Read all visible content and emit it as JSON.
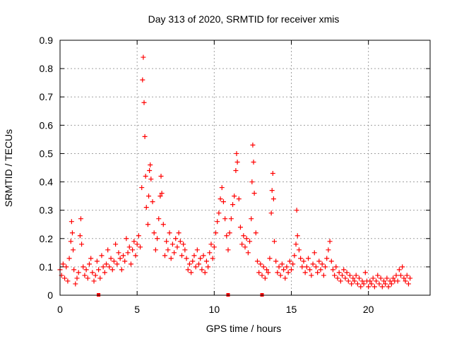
{
  "chart_data": {
    "type": "scatter",
    "title": "Day 313 of 2020, SRMTID for receiver xmis",
    "xlabel": "GPS time / hours",
    "ylabel": "SRMTID / TECUs",
    "xlim": [
      0,
      24
    ],
    "ylim": [
      0,
      0.9
    ],
    "x_ticks": [
      0,
      5,
      10,
      15,
      20
    ],
    "y_ticks": [
      0,
      0.1,
      0.2,
      0.3,
      0.4,
      0.5,
      0.6,
      0.7,
      0.8,
      0.9
    ],
    "x_tick_labels": [
      "0",
      "5",
      "10",
      "15",
      "20"
    ],
    "y_tick_labels": [
      "0",
      "0.1",
      "0.2",
      "0.3",
      "0.4",
      "0.5",
      "0.6",
      "0.7",
      "0.8",
      "0.9"
    ],
    "grid": true,
    "marker": "+",
    "series_color": "#ff0000",
    "baseline_markers_x": [
      2.5,
      10.9,
      13.1
    ],
    "series": [
      {
        "name": "SRMTID",
        "points": [
          [
            0.0,
            0.09
          ],
          [
            0.1,
            0.07
          ],
          [
            0.2,
            0.11
          ],
          [
            0.3,
            0.06
          ],
          [
            0.4,
            0.1
          ],
          [
            0.5,
            0.05
          ],
          [
            0.6,
            0.13
          ],
          [
            0.7,
            0.19
          ],
          [
            0.75,
            0.26
          ],
          [
            0.8,
            0.22
          ],
          [
            0.85,
            0.16
          ],
          [
            0.9,
            0.09
          ],
          [
            1.0,
            0.04
          ],
          [
            1.1,
            0.06
          ],
          [
            1.2,
            0.08
          ],
          [
            1.3,
            0.21
          ],
          [
            1.35,
            0.27
          ],
          [
            1.4,
            0.18
          ],
          [
            1.5,
            0.1
          ],
          [
            1.6,
            0.07
          ],
          [
            1.7,
            0.09
          ],
          [
            1.8,
            0.06
          ],
          [
            1.9,
            0.11
          ],
          [
            2.0,
            0.13
          ],
          [
            2.1,
            0.08
          ],
          [
            2.2,
            0.05
          ],
          [
            2.3,
            0.07
          ],
          [
            2.4,
            0.12
          ],
          [
            2.5,
            0.09
          ],
          [
            2.6,
            0.06
          ],
          [
            2.7,
            0.14
          ],
          [
            2.8,
            0.1
          ],
          [
            2.9,
            0.08
          ],
          [
            3.0,
            0.11
          ],
          [
            3.1,
            0.16
          ],
          [
            3.2,
            0.1
          ],
          [
            3.3,
            0.13
          ],
          [
            3.4,
            0.09
          ],
          [
            3.5,
            0.12
          ],
          [
            3.6,
            0.18
          ],
          [
            3.7,
            0.11
          ],
          [
            3.8,
            0.15
          ],
          [
            3.9,
            0.13
          ],
          [
            4.0,
            0.09
          ],
          [
            4.1,
            0.14
          ],
          [
            4.2,
            0.12
          ],
          [
            4.3,
            0.2
          ],
          [
            4.4,
            0.15
          ],
          [
            4.5,
            0.17
          ],
          [
            4.6,
            0.11
          ],
          [
            4.7,
            0.16
          ],
          [
            4.8,
            0.19
          ],
          [
            4.9,
            0.14
          ],
          [
            5.0,
            0.18
          ],
          [
            5.1,
            0.21
          ],
          [
            5.2,
            0.17
          ],
          [
            5.3,
            0.38
          ],
          [
            5.35,
            0.76
          ],
          [
            5.4,
            0.84
          ],
          [
            5.45,
            0.68
          ],
          [
            5.5,
            0.56
          ],
          [
            5.55,
            0.42
          ],
          [
            5.6,
            0.31
          ],
          [
            5.7,
            0.25
          ],
          [
            5.75,
            0.35
          ],
          [
            5.8,
            0.44
          ],
          [
            5.85,
            0.46
          ],
          [
            5.9,
            0.41
          ],
          [
            6.0,
            0.33
          ],
          [
            6.1,
            0.22
          ],
          [
            6.2,
            0.16
          ],
          [
            6.3,
            0.2
          ],
          [
            6.4,
            0.27
          ],
          [
            6.5,
            0.35
          ],
          [
            6.55,
            0.42
          ],
          [
            6.6,
            0.36
          ],
          [
            6.7,
            0.25
          ],
          [
            6.8,
            0.14
          ],
          [
            6.9,
            0.19
          ],
          [
            7.0,
            0.16
          ],
          [
            7.1,
            0.22
          ],
          [
            7.2,
            0.13
          ],
          [
            7.3,
            0.18
          ],
          [
            7.4,
            0.15
          ],
          [
            7.5,
            0.2
          ],
          [
            7.6,
            0.17
          ],
          [
            7.7,
            0.22
          ],
          [
            7.8,
            0.19
          ],
          [
            7.9,
            0.14
          ],
          [
            8.0,
            0.18
          ],
          [
            8.1,
            0.16
          ],
          [
            8.2,
            0.13
          ],
          [
            8.3,
            0.09
          ],
          [
            8.4,
            0.11
          ],
          [
            8.5,
            0.08
          ],
          [
            8.6,
            0.12
          ],
          [
            8.7,
            0.14
          ],
          [
            8.8,
            0.1
          ],
          [
            8.9,
            0.16
          ],
          [
            9.0,
            0.11
          ],
          [
            9.1,
            0.13
          ],
          [
            9.2,
            0.09
          ],
          [
            9.3,
            0.14
          ],
          [
            9.4,
            0.08
          ],
          [
            9.5,
            0.12
          ],
          [
            9.6,
            0.1
          ],
          [
            9.7,
            0.15
          ],
          [
            9.8,
            0.18
          ],
          [
            9.9,
            0.13
          ],
          [
            10.0,
            0.17
          ],
          [
            10.1,
            0.22
          ],
          [
            10.2,
            0.26
          ],
          [
            10.3,
            0.29
          ],
          [
            10.4,
            0.34
          ],
          [
            10.5,
            0.38
          ],
          [
            10.6,
            0.33
          ],
          [
            10.7,
            0.27
          ],
          [
            10.8,
            0.21
          ],
          [
            10.9,
            0.16
          ],
          [
            11.0,
            0.22
          ],
          [
            11.1,
            0.27
          ],
          [
            11.2,
            0.32
          ],
          [
            11.3,
            0.35
          ],
          [
            11.4,
            0.44
          ],
          [
            11.45,
            0.5
          ],
          [
            11.5,
            0.47
          ],
          [
            11.6,
            0.34
          ],
          [
            11.7,
            0.24
          ],
          [
            11.8,
            0.18
          ],
          [
            11.9,
            0.21
          ],
          [
            12.0,
            0.17
          ],
          [
            12.1,
            0.2
          ],
          [
            12.2,
            0.15
          ],
          [
            12.3,
            0.19
          ],
          [
            12.4,
            0.27
          ],
          [
            12.45,
            0.4
          ],
          [
            12.5,
            0.53
          ],
          [
            12.55,
            0.47
          ],
          [
            12.6,
            0.36
          ],
          [
            12.7,
            0.22
          ],
          [
            12.8,
            0.12
          ],
          [
            12.9,
            0.08
          ],
          [
            13.0,
            0.11
          ],
          [
            13.1,
            0.07
          ],
          [
            13.2,
            0.1
          ],
          [
            13.3,
            0.06
          ],
          [
            13.4,
            0.09
          ],
          [
            13.5,
            0.08
          ],
          [
            13.6,
            0.13
          ],
          [
            13.7,
            0.29
          ],
          [
            13.75,
            0.37
          ],
          [
            13.8,
            0.43
          ],
          [
            13.85,
            0.34
          ],
          [
            13.9,
            0.19
          ],
          [
            14.0,
            0.12
          ],
          [
            14.1,
            0.08
          ],
          [
            14.2,
            0.1
          ],
          [
            14.3,
            0.07
          ],
          [
            14.4,
            0.11
          ],
          [
            14.5,
            0.09
          ],
          [
            14.6,
            0.06
          ],
          [
            14.7,
            0.1
          ],
          [
            14.8,
            0.08
          ],
          [
            14.9,
            0.12
          ],
          [
            15.0,
            0.09
          ],
          [
            15.1,
            0.11
          ],
          [
            15.2,
            0.14
          ],
          [
            15.3,
            0.18
          ],
          [
            15.35,
            0.3
          ],
          [
            15.4,
            0.21
          ],
          [
            15.5,
            0.16
          ],
          [
            15.6,
            0.13
          ],
          [
            15.7,
            0.1
          ],
          [
            15.8,
            0.12
          ],
          [
            15.9,
            0.08
          ],
          [
            16.0,
            0.1
          ],
          [
            16.1,
            0.13
          ],
          [
            16.2,
            0.09
          ],
          [
            16.3,
            0.07
          ],
          [
            16.4,
            0.11
          ],
          [
            16.5,
            0.15
          ],
          [
            16.6,
            0.1
          ],
          [
            16.7,
            0.08
          ],
          [
            16.8,
            0.12
          ],
          [
            16.9,
            0.09
          ],
          [
            17.0,
            0.11
          ],
          [
            17.1,
            0.07
          ],
          [
            17.2,
            0.1
          ],
          [
            17.3,
            0.13
          ],
          [
            17.4,
            0.16
          ],
          [
            17.5,
            0.19
          ],
          [
            17.6,
            0.12
          ],
          [
            17.7,
            0.09
          ],
          [
            17.8,
            0.07
          ],
          [
            17.9,
            0.1
          ],
          [
            18.0,
            0.06
          ],
          [
            18.1,
            0.08
          ],
          [
            18.2,
            0.05
          ],
          [
            18.3,
            0.07
          ],
          [
            18.4,
            0.09
          ],
          [
            18.5,
            0.06
          ],
          [
            18.6,
            0.08
          ],
          [
            18.7,
            0.05
          ],
          [
            18.8,
            0.07
          ],
          [
            18.9,
            0.04
          ],
          [
            19.0,
            0.06
          ],
          [
            19.1,
            0.05
          ],
          [
            19.2,
            0.07
          ],
          [
            19.3,
            0.04
          ],
          [
            19.4,
            0.06
          ],
          [
            19.5,
            0.03
          ],
          [
            19.6,
            0.05
          ],
          [
            19.7,
            0.04
          ],
          [
            19.8,
            0.08
          ],
          [
            19.9,
            0.05
          ],
          [
            20.0,
            0.03
          ],
          [
            20.1,
            0.05
          ],
          [
            20.2,
            0.04
          ],
          [
            20.3,
            0.06
          ],
          [
            20.4,
            0.03
          ],
          [
            20.5,
            0.05
          ],
          [
            20.6,
            0.07
          ],
          [
            20.7,
            0.04
          ],
          [
            20.8,
            0.06
          ],
          [
            20.9,
            0.03
          ],
          [
            21.0,
            0.05
          ],
          [
            21.1,
            0.04
          ],
          [
            21.2,
            0.06
          ],
          [
            21.3,
            0.03
          ],
          [
            21.4,
            0.05
          ],
          [
            21.5,
            0.04
          ],
          [
            21.6,
            0.06
          ],
          [
            21.7,
            0.05
          ],
          [
            21.8,
            0.07
          ],
          [
            21.9,
            0.05
          ],
          [
            22.0,
            0.09
          ],
          [
            22.1,
            0.07
          ],
          [
            22.2,
            0.1
          ],
          [
            22.3,
            0.06
          ],
          [
            22.4,
            0.05
          ],
          [
            22.5,
            0.07
          ],
          [
            22.6,
            0.04
          ],
          [
            22.7,
            0.06
          ]
        ]
      }
    ]
  }
}
